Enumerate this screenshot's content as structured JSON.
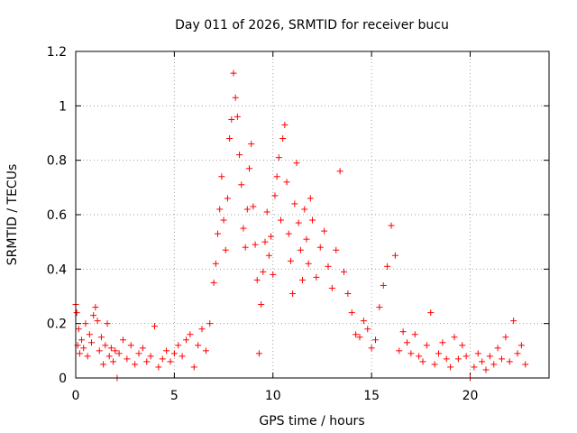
{
  "chart_data": {
    "type": "scatter",
    "title": "Day 011 of 2026, SRMTID for receiver bucu",
    "xlabel": "GPS time / hours",
    "ylabel": "SRMTID / TECUs",
    "xlim": [
      0,
      24
    ],
    "ylim": [
      0,
      1.2
    ],
    "xticks": [
      0,
      5,
      10,
      15,
      20
    ],
    "xtick_labels": [
      "0",
      "5",
      "10",
      "15",
      "20"
    ],
    "yticks": [
      0,
      0.2,
      0.4,
      0.6,
      0.8,
      1.0,
      1.2
    ],
    "ytick_labels": [
      "0",
      "0.2",
      "0.4",
      "0.6",
      "0.8",
      "1",
      "1.2"
    ],
    "grid": true,
    "marker": "+",
    "color": "#ff0000",
    "series": [
      {
        "name": "SRMTID",
        "x": [
          0.0,
          0.05,
          0.1,
          0.15,
          0.2,
          0.3,
          0.4,
          0.5,
          0.6,
          0.7,
          0.8,
          0.9,
          1.0,
          1.1,
          1.2,
          1.3,
          1.4,
          1.5,
          1.6,
          1.7,
          1.8,
          1.9,
          2.0,
          2.1,
          2.2,
          2.4,
          2.6,
          2.8,
          3.0,
          3.2,
          3.4,
          3.6,
          3.8,
          4.0,
          4.2,
          4.4,
          4.6,
          4.8,
          5.0,
          5.2,
          5.4,
          5.6,
          5.8,
          6.0,
          6.2,
          6.4,
          6.6,
          6.8,
          7.0,
          7.1,
          7.2,
          7.3,
          7.4,
          7.5,
          7.6,
          7.7,
          7.8,
          7.9,
          8.0,
          8.1,
          8.2,
          8.3,
          8.4,
          8.5,
          8.6,
          8.7,
          8.8,
          8.9,
          9.0,
          9.1,
          9.2,
          9.3,
          9.4,
          9.5,
          9.6,
          9.7,
          9.8,
          9.9,
          10.0,
          10.1,
          10.2,
          10.3,
          10.4,
          10.5,
          10.6,
          10.7,
          10.8,
          10.9,
          11.0,
          11.1,
          11.2,
          11.3,
          11.4,
          11.5,
          11.6,
          11.7,
          11.8,
          11.9,
          12.0,
          12.2,
          12.4,
          12.6,
          12.8,
          13.0,
          13.2,
          13.4,
          13.6,
          13.8,
          14.0,
          14.2,
          14.4,
          14.6,
          14.8,
          15.0,
          15.2,
          15.4,
          15.6,
          15.8,
          16.0,
          16.2,
          16.4,
          16.6,
          16.8,
          17.0,
          17.2,
          17.4,
          17.6,
          17.8,
          18.0,
          18.2,
          18.4,
          18.6,
          18.8,
          19.0,
          19.2,
          19.4,
          19.6,
          19.8,
          20.0,
          20.2,
          20.4,
          20.6,
          20.8,
          21.0,
          21.2,
          21.4,
          21.6,
          21.8,
          22.0,
          22.2,
          22.4,
          22.6,
          22.8
        ],
        "y": [
          0.27,
          0.24,
          0.12,
          0.18,
          0.09,
          0.14,
          0.11,
          0.2,
          0.08,
          0.16,
          0.13,
          0.23,
          0.26,
          0.21,
          0.1,
          0.15,
          0.05,
          0.12,
          0.2,
          0.08,
          0.11,
          0.06,
          0.1,
          0.0,
          0.09,
          0.14,
          0.07,
          0.12,
          0.05,
          0.09,
          0.11,
          0.06,
          0.08,
          0.19,
          0.04,
          0.07,
          0.1,
          0.06,
          0.09,
          0.12,
          0.08,
          0.14,
          0.16,
          0.04,
          0.12,
          0.18,
          0.1,
          0.2,
          0.35,
          0.42,
          0.53,
          0.62,
          0.74,
          0.58,
          0.47,
          0.66,
          0.88,
          0.95,
          1.12,
          1.03,
          0.96,
          0.82,
          0.71,
          0.55,
          0.48,
          0.62,
          0.77,
          0.86,
          0.63,
          0.49,
          0.36,
          0.09,
          0.27,
          0.39,
          0.5,
          0.61,
          0.45,
          0.52,
          0.38,
          0.67,
          0.74,
          0.81,
          0.58,
          0.88,
          0.93,
          0.72,
          0.53,
          0.43,
          0.31,
          0.64,
          0.79,
          0.57,
          0.47,
          0.36,
          0.62,
          0.51,
          0.42,
          0.66,
          0.58,
          0.37,
          0.48,
          0.54,
          0.41,
          0.33,
          0.47,
          0.76,
          0.39,
          0.31,
          0.24,
          0.16,
          0.15,
          0.21,
          0.18,
          0.11,
          0.14,
          0.26,
          0.34,
          0.41,
          0.56,
          0.45,
          0.1,
          0.17,
          0.13,
          0.09,
          0.16,
          0.08,
          0.06,
          0.12,
          0.24,
          0.05,
          0.09,
          0.13,
          0.07,
          0.04,
          0.15,
          0.07,
          0.12,
          0.08,
          0.0,
          0.04,
          0.09,
          0.06,
          0.03,
          0.08,
          0.05,
          0.11,
          0.07,
          0.15,
          0.06,
          0.21,
          0.09,
          0.12,
          0.05
        ]
      }
    ]
  }
}
